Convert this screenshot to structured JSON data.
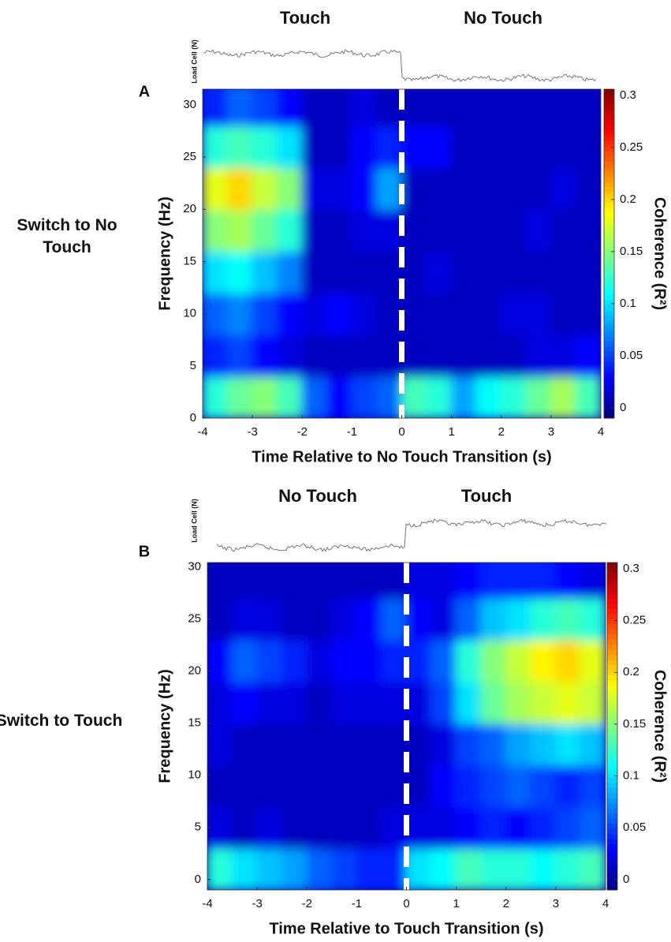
{
  "chart_data": [
    {
      "type": "heatmap",
      "panel_label": "A",
      "row_label": "Switch to No Touch",
      "conditions": [
        {
          "name": "Touch",
          "color": "#e8843a"
        },
        {
          "name": "No Touch",
          "color": "#7d3fa8"
        }
      ],
      "trace_label": "Load Cell (N)",
      "x_label": "Time Relative to No Touch Transition (s)",
      "y_label": "Frequency (Hz)",
      "colorbar_label": "Coherence (R²)",
      "xlim": [
        -4,
        4
      ],
      "ylim": [
        0,
        31.5
      ],
      "xticks": [
        -4,
        -3,
        -2,
        -1,
        0,
        1,
        2,
        3,
        4
      ],
      "yticks": [
        0,
        5,
        10,
        15,
        20,
        25,
        30
      ],
      "clim": [
        -0.01,
        0.306
      ],
      "cticks": [
        0,
        0.05,
        0.1,
        0.15,
        0.2,
        0.25,
        0.3
      ],
      "transition_x": 0,
      "x": [
        -3.75,
        -3.25,
        -2.75,
        -2.25,
        -1.75,
        -1.25,
        -0.75,
        -0.25,
        0.25,
        0.75,
        1.25,
        1.75,
        2.25,
        2.75,
        3.25,
        3.75
      ],
      "y": [
        2,
        6,
        10,
        14,
        18,
        22,
        26,
        30
      ],
      "values": [
        [
          0.12,
          0.14,
          0.15,
          0.13,
          0.06,
          0.03,
          0.05,
          0.06,
          0.13,
          0.12,
          0.08,
          0.11,
          0.12,
          0.14,
          0.16,
          0.13
        ],
        [
          0.04,
          0.05,
          0.03,
          0.02,
          0.01,
          0.01,
          0.01,
          0.01,
          0.01,
          0.01,
          0.01,
          0.01,
          0.01,
          0.02,
          0.02,
          0.03
        ],
        [
          0.06,
          0.07,
          0.05,
          0.03,
          0.02,
          0.03,
          0.02,
          0.01,
          0.01,
          0.01,
          0.01,
          0.01,
          0.02,
          0.02,
          0.01,
          0.01
        ],
        [
          0.1,
          0.11,
          0.09,
          0.07,
          0.01,
          0.01,
          0.01,
          0.01,
          0.01,
          0.02,
          0.01,
          0.01,
          0.01,
          0.01,
          0.01,
          0.01
        ],
        [
          0.15,
          0.16,
          0.14,
          0.12,
          0.01,
          0.01,
          0.02,
          0.02,
          0.01,
          0.01,
          0.01,
          0.01,
          0.01,
          0.02,
          0.01,
          0.01
        ],
        [
          0.18,
          0.2,
          0.17,
          0.15,
          0.02,
          0.02,
          0.03,
          0.08,
          0.01,
          0.01,
          0.01,
          0.01,
          0.01,
          0.01,
          0.02,
          0.01
        ],
        [
          0.12,
          0.13,
          0.12,
          0.1,
          0.01,
          0.01,
          0.03,
          0.04,
          0.03,
          0.03,
          0.01,
          0.01,
          0.01,
          0.01,
          0.01,
          0.01
        ],
        [
          0.04,
          0.06,
          0.05,
          0.03,
          0.01,
          0.01,
          0.02,
          0.01,
          0.01,
          0.01,
          0.01,
          0.01,
          0.01,
          0.01,
          0.01,
          0.01
        ]
      ]
    },
    {
      "type": "heatmap",
      "panel_label": "B",
      "row_label": "Switch to Touch",
      "conditions": [
        {
          "name": "No Touch",
          "color": "#7d3fa8"
        },
        {
          "name": "Touch",
          "color": "#e8843a"
        }
      ],
      "trace_label": "Load Cell (N)",
      "x_label": "Time Relative to Touch Transition (s)",
      "y_label": "Frequency (Hz)",
      "colorbar_label": "Coherence (R²)",
      "xlim": [
        -4,
        4
      ],
      "ylim": [
        -1,
        30.4
      ],
      "xticks": [
        -4,
        -3,
        -2,
        -1,
        0,
        1,
        2,
        3,
        4
      ],
      "yticks": [
        0,
        5,
        10,
        15,
        20,
        25,
        30
      ],
      "clim": [
        -0.01,
        0.306
      ],
      "cticks": [
        0,
        0.05,
        0.1,
        0.15,
        0.2,
        0.25,
        0.3
      ],
      "transition_x": 0,
      "x": [
        -3.75,
        -3.25,
        -2.75,
        -2.25,
        -1.75,
        -1.25,
        -0.75,
        -0.25,
        0.25,
        0.75,
        1.25,
        1.75,
        2.25,
        2.75,
        3.25,
        3.75
      ],
      "y": [
        1,
        5,
        9,
        13,
        17,
        21,
        25,
        29
      ],
      "values": [
        [
          0.12,
          0.1,
          0.09,
          0.08,
          0.06,
          0.05,
          0.04,
          0.04,
          0.1,
          0.11,
          0.13,
          0.12,
          0.12,
          0.11,
          0.12,
          0.13
        ],
        [
          0.02,
          0.01,
          0.02,
          0.01,
          0.01,
          0.01,
          0.01,
          0.02,
          0.02,
          0.02,
          0.03,
          0.04,
          0.03,
          0.04,
          0.05,
          0.06
        ],
        [
          0.01,
          0.01,
          0.01,
          0.01,
          0.01,
          0.01,
          0.01,
          0.01,
          0.01,
          0.03,
          0.04,
          0.05,
          0.06,
          0.05,
          0.04,
          0.05
        ],
        [
          0.02,
          0.01,
          0.01,
          0.01,
          0.01,
          0.01,
          0.01,
          0.01,
          0.01,
          0.02,
          0.05,
          0.06,
          0.08,
          0.09,
          0.1,
          0.09
        ],
        [
          0.02,
          0.03,
          0.02,
          0.02,
          0.01,
          0.02,
          0.02,
          0.02,
          0.02,
          0.05,
          0.1,
          0.14,
          0.16,
          0.17,
          0.18,
          0.17
        ],
        [
          0.03,
          0.06,
          0.05,
          0.04,
          0.02,
          0.03,
          0.03,
          0.04,
          0.04,
          0.06,
          0.12,
          0.15,
          0.17,
          0.19,
          0.2,
          0.18
        ],
        [
          0.01,
          0.02,
          0.02,
          0.01,
          0.01,
          0.02,
          0.03,
          0.06,
          0.03,
          0.02,
          0.06,
          0.09,
          0.1,
          0.12,
          0.13,
          0.12
        ],
        [
          0.01,
          0.01,
          0.01,
          0.01,
          0.01,
          0.01,
          0.01,
          0.01,
          0.02,
          0.02,
          0.03,
          0.04,
          0.04,
          0.04,
          0.03,
          0.02
        ]
      ]
    }
  ]
}
